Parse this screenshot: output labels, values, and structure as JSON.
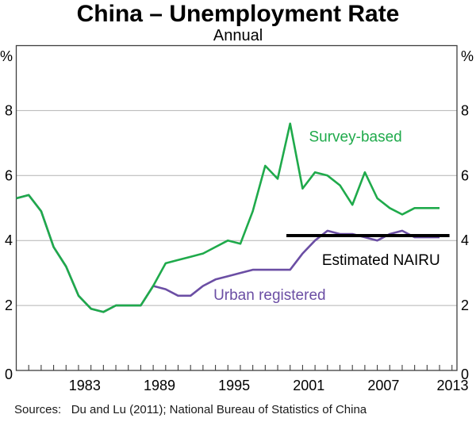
{
  "header": {
    "title": "China – Unemployment Rate",
    "subtitle": "Annual"
  },
  "footer": {
    "sources": "Sources:   Du and Lu (2011); National Bureau of Statistics of China"
  },
  "colors": {
    "survey": "#1faa4b",
    "registered": "#6b4ea4",
    "nairu": "#000000",
    "grid": "#b3b3b3",
    "frame": "#3f3f3f"
  },
  "chart_data": {
    "type": "line",
    "title": "China – Unemployment Rate",
    "subtitle": "Annual",
    "unit_label": "%",
    "ylim": [
      0,
      10
    ],
    "y_ticks": [
      0,
      2,
      4,
      6,
      8
    ],
    "grid": true,
    "x_range": [
      1978,
      2013.4
    ],
    "x_tick_years_labeled": [
      1983,
      1989,
      1995,
      2001,
      2007,
      2013
    ],
    "x": [
      1978,
      1979,
      1980,
      1981,
      1982,
      1983,
      1984,
      1985,
      1986,
      1987,
      1988,
      1989,
      1990,
      1991,
      1992,
      1993,
      1994,
      1995,
      1996,
      1997,
      1998,
      1999,
      2000,
      2001,
      2002,
      2003,
      2004,
      2005,
      2006,
      2007,
      2008,
      2009,
      2010,
      2011,
      2012
    ],
    "series": [
      {
        "name": "Urban registered",
        "color_key": "registered",
        "values": [
          5.3,
          5.4,
          4.9,
          3.8,
          3.2,
          2.3,
          1.9,
          1.8,
          2.0,
          2.0,
          2.0,
          2.6,
          2.5,
          2.3,
          2.3,
          2.6,
          2.8,
          2.9,
          3.0,
          3.1,
          3.1,
          3.1,
          3.1,
          3.6,
          4.0,
          4.3,
          4.2,
          4.2,
          4.1,
          4.0,
          4.2,
          4.3,
          4.1,
          4.1,
          4.1
        ],
        "label_pos": {
          "year": 1998.35,
          "value": 2.33
        }
      },
      {
        "name": "Survey-based",
        "color_key": "survey",
        "values": [
          5.3,
          5.4,
          4.9,
          3.8,
          3.2,
          2.3,
          1.9,
          1.8,
          2.0,
          2.0,
          2.0,
          2.6,
          3.3,
          3.4,
          3.5,
          3.6,
          3.8,
          4.0,
          3.9,
          4.9,
          6.3,
          5.9,
          7.6,
          5.6,
          6.1,
          6.0,
          5.7,
          5.1,
          6.1,
          5.3,
          5.0,
          4.8,
          5.0,
          5.0,
          5.0
        ],
        "label_pos": {
          "year": 2005.25,
          "value": 7.2
        }
      }
    ],
    "reference_line": {
      "name": "Estimated NAIRU",
      "color_key": "nairu",
      "value": 4.15,
      "start_year": 1999.7,
      "end_year": 2012.8,
      "label_pos": {
        "year": 2007.3,
        "value": 3.41
      }
    }
  }
}
